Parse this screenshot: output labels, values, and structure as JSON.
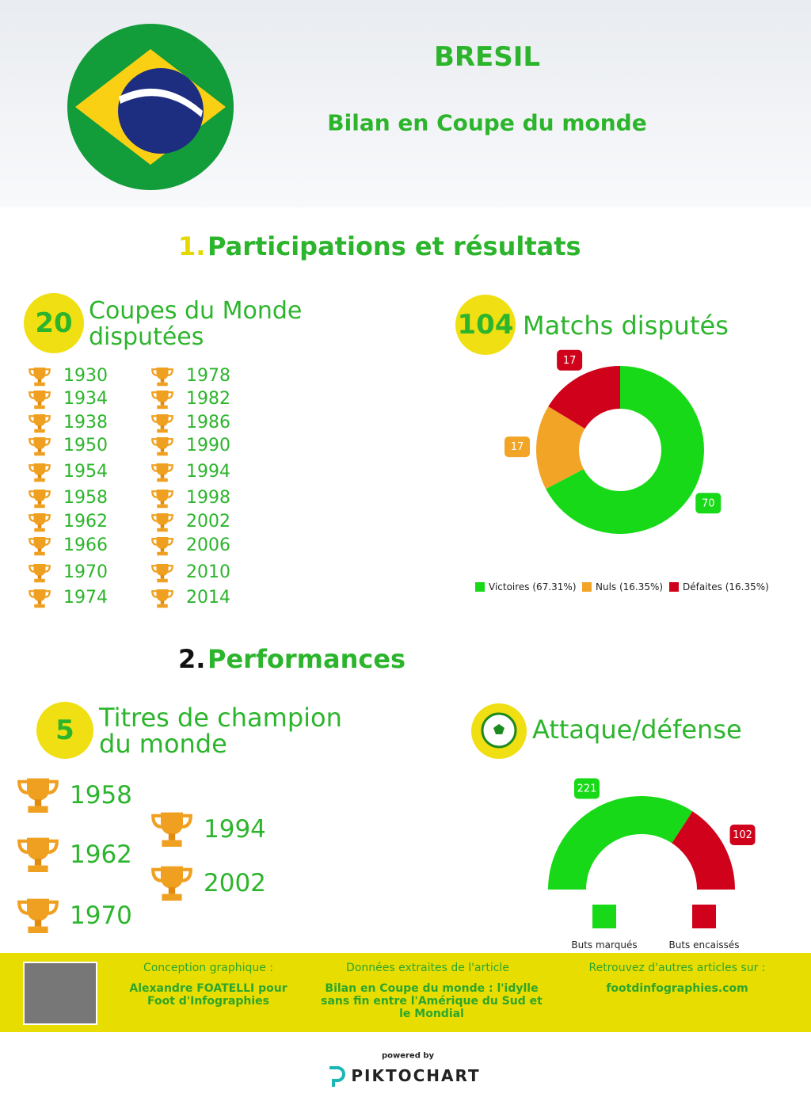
{
  "header": {
    "title": "BRESIL",
    "subtitle": "Bilan en Coupe du monde"
  },
  "section1": {
    "number": "1.",
    "title": "Participations et résultats"
  },
  "participations": {
    "count": 20,
    "label": "Coupes du Monde disputées",
    "years": [
      "1930",
      "1934",
      "1938",
      "1950",
      "1954",
      "1958",
      "1962",
      "1966",
      "1970",
      "1974",
      "1978",
      "1982",
      "1986",
      "1990",
      "1994",
      "1998",
      "2002",
      "2006",
      "2010",
      "2014"
    ]
  },
  "matches": {
    "count": 104,
    "label": "Matchs disputés"
  },
  "section2": {
    "number": "2.",
    "title": "Performances"
  },
  "titles": {
    "count": 5,
    "label": "Titres de champion du monde",
    "years": [
      "1958",
      "1962",
      "1970",
      "1994",
      "2002"
    ]
  },
  "attack": {
    "label": "Attaque/défense"
  },
  "footer": {
    "design_label": "Conception graphique :",
    "design_author": "Alexandre FOATELLI pour Foot d'Infographies",
    "source_label": "Données extraites de l'article",
    "source_title": "Bilan en Coupe du monde : l'idylle sans fin entre l'Amérique du Sud et le Mondial",
    "more_label": "Retrouvez d'autres articles sur :",
    "more_site": "footdinfographies.com"
  },
  "powered": {
    "text": "powered by",
    "brand": "PIKTOCHART"
  },
  "chart_data": [
    {
      "type": "donut",
      "categories": [
        "Victoires (67.31%)",
        "Nuls (16.35%)",
        "Défaites (16.35%)"
      ],
      "values": [
        70,
        17,
        17
      ],
      "colors": [
        "#18d918",
        "#f2a427",
        "#d0021b"
      ]
    },
    {
      "type": "semi-donut",
      "categories": [
        "Buts marqués",
        "Buts encaissés"
      ],
      "values": [
        221,
        102
      ],
      "colors": [
        "#18d918",
        "#d0021b"
      ]
    }
  ]
}
